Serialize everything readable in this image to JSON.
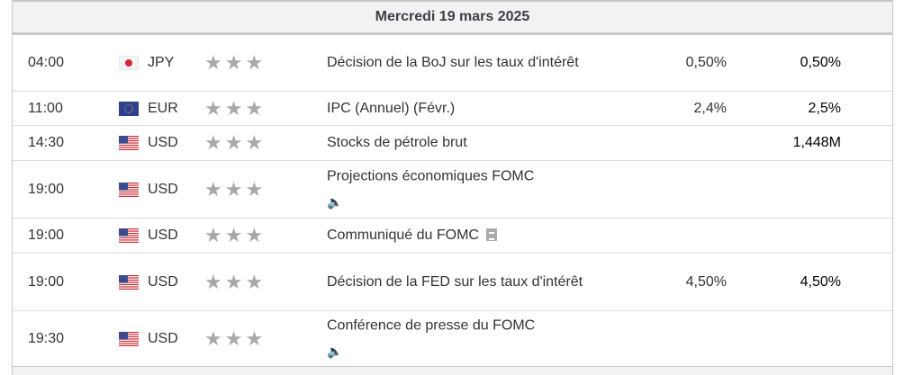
{
  "date_header": "Mercredi 19 mars 2025",
  "events": [
    {
      "time": "04:00",
      "currency": "JPY",
      "flag": "japan-flag",
      "importance": 3,
      "event": "Décision de la BoJ sur les taux d'intérêt",
      "forecast": "0,50%",
      "previous": "0,50%"
    },
    {
      "time": "11:00",
      "currency": "EUR",
      "flag": "eu-flag",
      "importance": 3,
      "event": "IPC (Annuel) (Févr.)",
      "forecast": "2,4%",
      "previous": "2,5%"
    },
    {
      "time": "14:30",
      "currency": "USD",
      "flag": "us-flag",
      "importance": 3,
      "event": "Stocks de pétrole brut",
      "forecast": "",
      "previous": "1,448M"
    },
    {
      "time": "19:00",
      "currency": "USD",
      "flag": "us-flag",
      "importance": 3,
      "event": "Projections économiques FOMC",
      "icon": "speaker-icon",
      "forecast": "",
      "previous": ""
    },
    {
      "time": "19:00",
      "currency": "USD",
      "flag": "us-flag",
      "importance": 3,
      "event": "Communiqué du FOMC",
      "icon": "document-icon",
      "forecast": "",
      "previous": ""
    },
    {
      "time": "19:00",
      "currency": "USD",
      "flag": "us-flag",
      "importance": 3,
      "event": "Décision de la FED sur les taux d'intérêt",
      "forecast": "4,50%",
      "previous": "4,50%"
    },
    {
      "time": "19:30",
      "currency": "USD",
      "flag": "us-flag",
      "importance": 3,
      "event": "Conférence de presse du FOMC",
      "icon": "speaker-icon",
      "forecast": "",
      "previous": ""
    }
  ]
}
